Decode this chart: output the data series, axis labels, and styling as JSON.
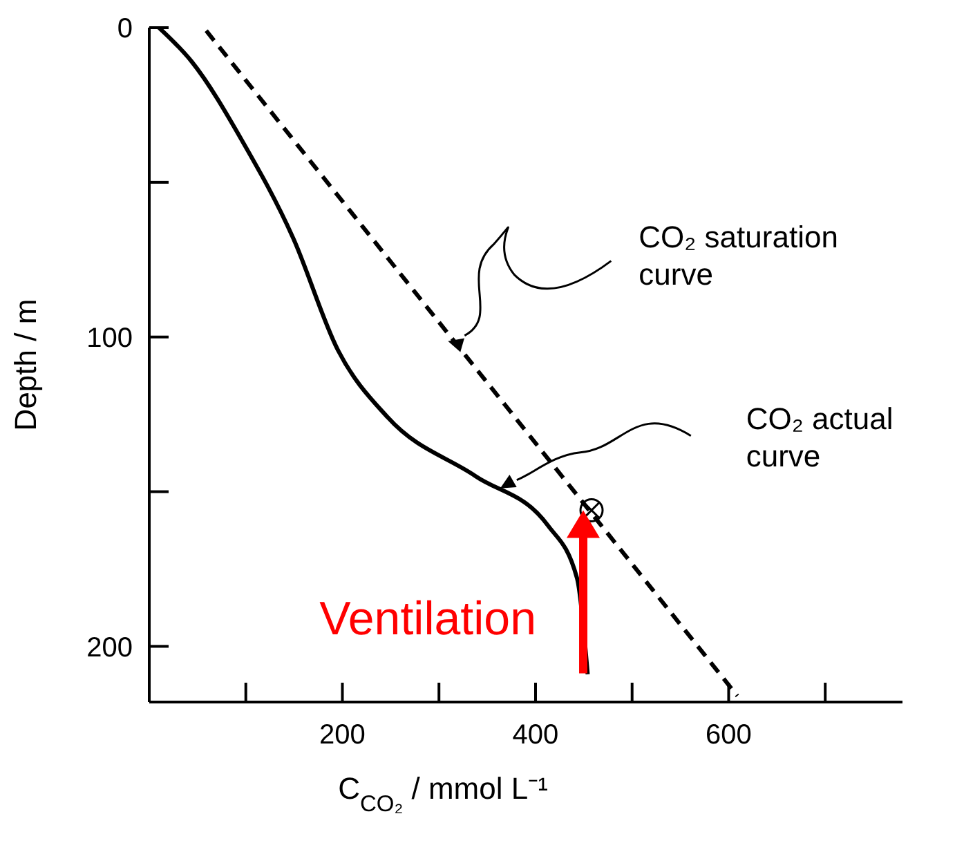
{
  "chart_data": {
    "type": "line",
    "xlabel": "C$_{CO₂}$ / mmol L⁻¹",
    "ylabel": "Depth / m",
    "xlim": [
      0,
      780
    ],
    "xticks": [
      {
        "value": 100,
        "label": null
      },
      200,
      {
        "value": 300,
        "label": null
      },
      400,
      {
        "value": 500,
        "label": null
      },
      600,
      {
        "value": 700,
        "label": null
      }
    ],
    "ylim": [
      218,
      0
    ],
    "yticks": [
      0,
      {
        "value": 50,
        "label": null
      },
      100,
      {
        "value": 150,
        "label": null
      },
      200
    ],
    "series": [
      {
        "color": "#000000",
        "line_style": "dashed",
        "marker": "none",
        "x": [
          59,
          609
        ],
        "values": [
          1,
          216
        ]
      },
      {
        "color": "#000000",
        "line_style": "solid",
        "marker": "none",
        "x": [
          10,
          44,
          97,
          149,
          195,
          247,
          338,
          413,
          443,
          454
        ],
        "values": [
          0,
          11,
          37,
          68,
          104,
          126,
          145,
          161,
          178,
          209
        ]
      },
      {
        "type": "scatter",
        "color": "#000000",
        "marker": "circle",
        "x": [
          458
        ],
        "values": [
          156
        ]
      }
    ],
    "annotations": [
      "CO₂ saturation curve",
      "CO₂ actual curve",
      "Ventilation"
    ]
  }
}
